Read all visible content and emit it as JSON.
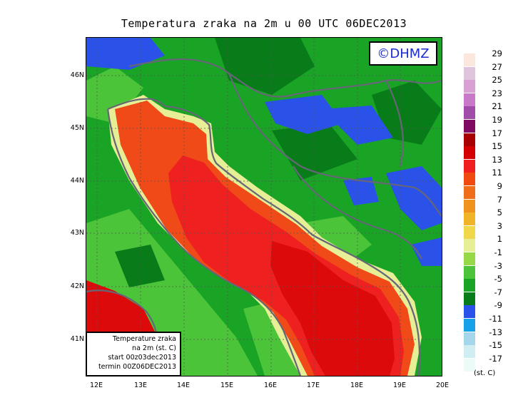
{
  "title": "Temperatura zraka na 2m u 00 UTC 06DEC2013",
  "logo_text": "©DHMZ",
  "info_box": {
    "line1": "Temperature zraka",
    "line2": "na 2m (st. C)",
    "line3": "start 00z03dec2013",
    "line4": "termin 00Z06DEC2013"
  },
  "lat_labels": [
    "46N",
    "45N",
    "44N",
    "43N",
    "42N",
    "41N"
  ],
  "lon_labels": [
    "12E",
    "13E",
    "14E",
    "15E",
    "16E",
    "17E",
    "18E",
    "19E",
    "20E"
  ],
  "legend": {
    "unit": "(st. C)",
    "labels": [
      "29",
      "27",
      "25",
      "23",
      "21",
      "19",
      "17",
      "15",
      "13",
      "11",
      "9",
      "7",
      "5",
      "3",
      "1",
      "-1",
      "-3",
      "-5",
      "-7",
      "-9",
      "-11",
      "-13",
      "-15",
      "-17"
    ],
    "colors": [
      "#fbe7dc",
      "#e0c4dc",
      "#d8a0d4",
      "#c87ac8",
      "#a04ca8",
      "#800a60",
      "#a80000",
      "#d40000",
      "#f02020",
      "#f04a10",
      "#f06e1a",
      "#f0921e",
      "#f0b428",
      "#f0d84a",
      "#e6ee96",
      "#96d846",
      "#4cc43a",
      "#1aa426",
      "#087c18",
      "#2a52e8",
      "#18a0e8",
      "#a6d6ea",
      "#d0eef2",
      "#ecfaf8"
    ]
  },
  "map_colors": {
    "sea_base": "#dc0a0a",
    "sea_warm": "#ee2020",
    "sea_coast": "#f04a18",
    "coast_yellow": "#e6ee96",
    "land_base": "#1aa426",
    "land_light": "#4cc43a",
    "land_dark": "#087c18",
    "cold": "#2a52e8",
    "border": "#666677"
  }
}
